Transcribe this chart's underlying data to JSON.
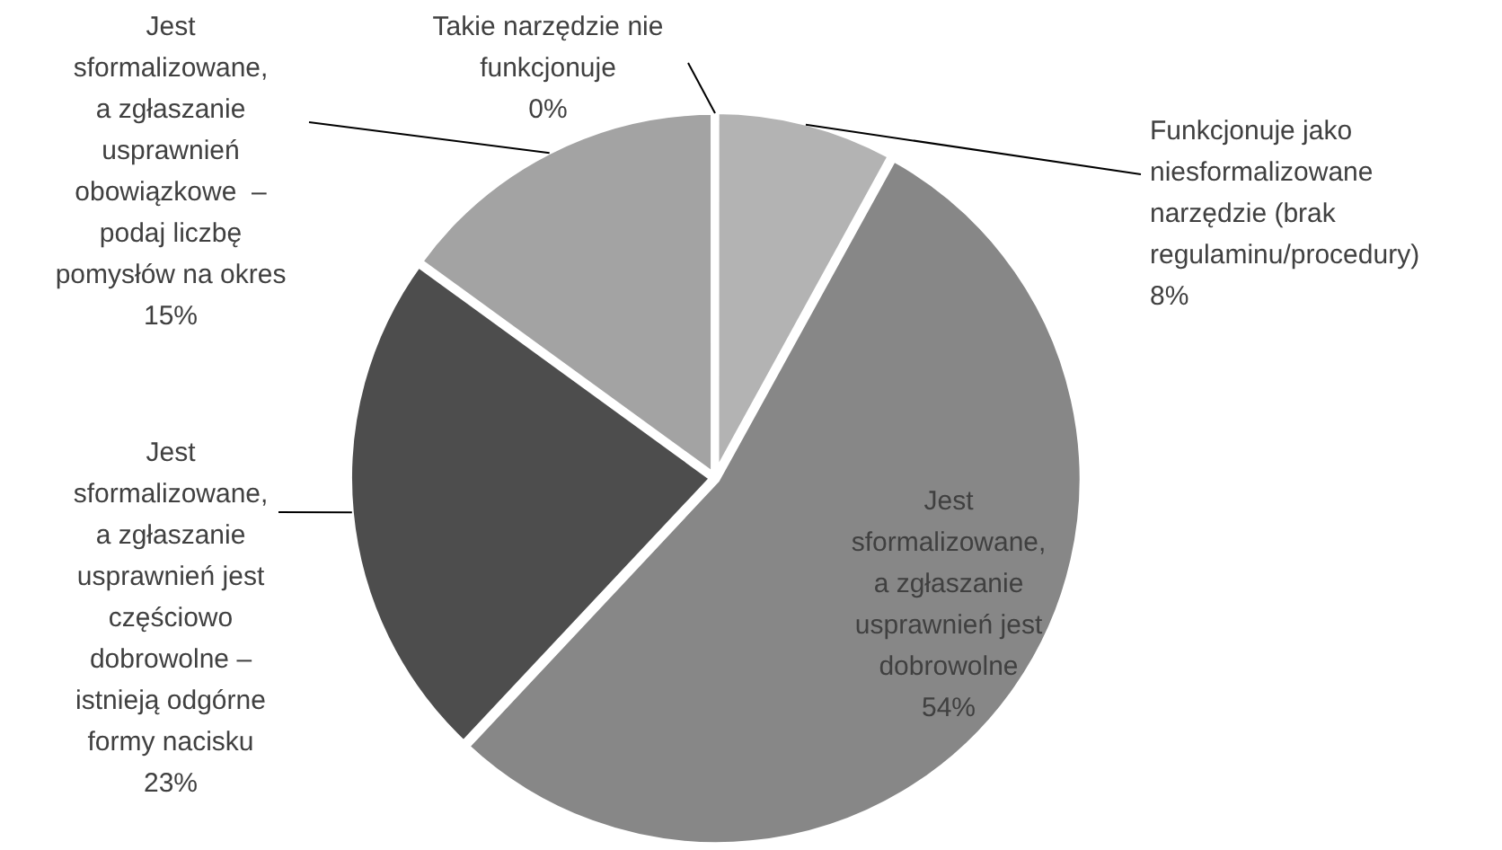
{
  "chart_data": {
    "type": "pie",
    "categories": [
      "Takie narzędzie nie\nfunkcjonuje",
      "Funkcjonuje jako\nniesformalizowane\nnarzędzie (brak\nregulaminu/procedury)",
      "Jest\nsformalizowane,\na zgłaszanie\nusprawnień jest\ndobrowolne",
      "Jest\nsformalizowane,\na zgłaszanie\nusprawnień jest\nczęściowo\ndobrowolne –\nistnieją odgórne\nformy nacisku",
      "Jest\nsformalizowane,\na zgłaszanie\nusprawnień\nobowiązkowe  –\npodaj liczbę\npomysłów na okres"
    ],
    "values": [
      0,
      8,
      54,
      23,
      15
    ],
    "value_labels": [
      "0%",
      "8%",
      "54%",
      "23%",
      "15%"
    ],
    "colors": [
      "#d0d0d0",
      "#b3b3b3",
      "#878787",
      "#4d4d4d",
      "#a3a3a3"
    ]
  }
}
